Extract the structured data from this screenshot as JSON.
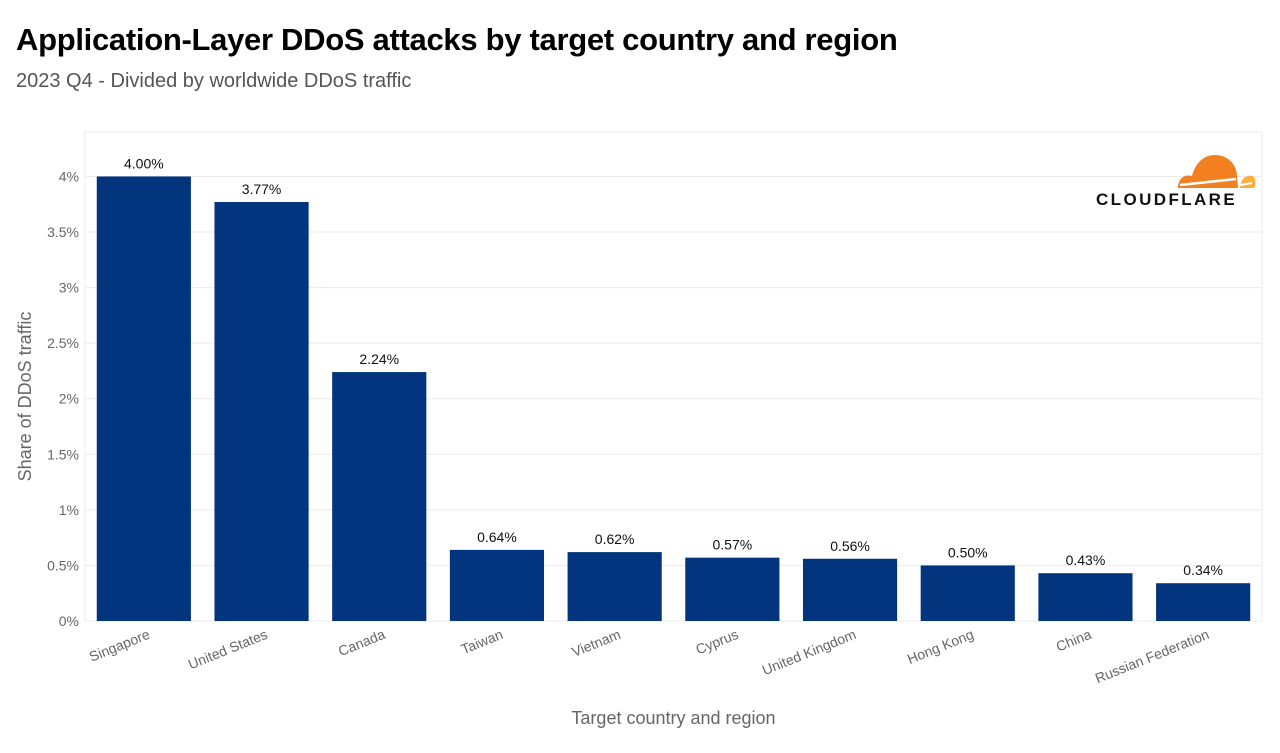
{
  "title": "Application-Layer DDoS attacks by target country and region",
  "subtitle": "2023 Q4 - Divided by worldwide DDoS traffic",
  "brand": {
    "name": "CLOUDFLARE",
    "orange": "#F38020",
    "orange_light": "#FBAD41"
  },
  "colors": {
    "bar": "#02357E",
    "grid": "#EBEBEB",
    "axis_text": "#666666"
  },
  "chart_data": {
    "type": "bar",
    "title": "Application-Layer DDoS attacks by target country and region",
    "xlabel": "Target country and region",
    "ylabel": "Share of DDoS traffic",
    "categories": [
      "Singapore",
      "United States",
      "Canada",
      "Taiwan",
      "Vietnam",
      "Cyprus",
      "United Kingdom",
      "Hong Kong",
      "China",
      "Russian Federation"
    ],
    "values": [
      4.0,
      3.77,
      2.24,
      0.64,
      0.62,
      0.57,
      0.56,
      0.5,
      0.43,
      0.34
    ],
    "value_labels": [
      "4.00%",
      "3.77%",
      "2.24%",
      "0.64%",
      "0.62%",
      "0.57%",
      "0.56%",
      "0.50%",
      "0.43%",
      "0.34%"
    ],
    "yticks": [
      0,
      0.5,
      1,
      1.5,
      2,
      2.5,
      3,
      3.5,
      4
    ],
    "ytick_labels": [
      "0%",
      "0.5%",
      "1%",
      "1.5%",
      "2%",
      "2.5%",
      "3%",
      "3.5%",
      "4%"
    ],
    "ylim": [
      0,
      4.4
    ],
    "grid": true,
    "legend": "none"
  }
}
